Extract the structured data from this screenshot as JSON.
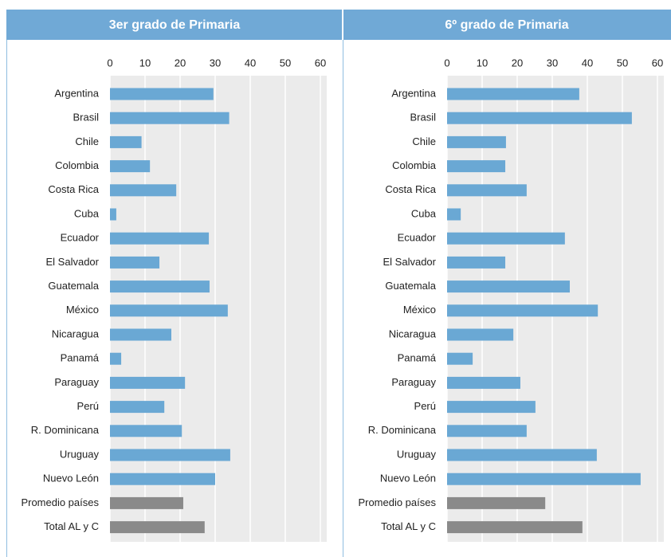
{
  "chart_data": [
    {
      "type": "bar",
      "orientation": "horizontal",
      "title": "3er grado de Primaria",
      "categories": [
        "Argentina",
        "Brasil",
        "Chile",
        "Colombia",
        "Costa Rica",
        "Cuba",
        "Ecuador",
        "El Salvador",
        "Guatemala",
        "México",
        "Nicaragua",
        "Panamá",
        "Paraguay",
        "Perú",
        "R. Dominicana",
        "Uruguay",
        "Nuevo León",
        "Promedio países",
        "Total AL y C"
      ],
      "values": [
        29.5,
        34,
        9,
        11.4,
        18.9,
        1.8,
        28.2,
        14.1,
        28.4,
        33.6,
        17.5,
        3.2,
        21.4,
        15.5,
        20.5,
        34.3,
        30,
        20.9,
        27
      ],
      "colors": [
        "#6aa8d4",
        "#6aa8d4",
        "#6aa8d4",
        "#6aa8d4",
        "#6aa8d4",
        "#6aa8d4",
        "#6aa8d4",
        "#6aa8d4",
        "#6aa8d4",
        "#6aa8d4",
        "#6aa8d4",
        "#6aa8d4",
        "#6aa8d4",
        "#6aa8d4",
        "#6aa8d4",
        "#6aa8d4",
        "#6aa8d4",
        "#8a8a8a",
        "#8a8a8a"
      ],
      "xlim": [
        0,
        60
      ],
      "xticks": [
        0,
        10,
        20,
        30,
        40,
        50,
        60
      ],
      "grid": true
    },
    {
      "type": "bar",
      "orientation": "horizontal",
      "title": "6º grado de Primaria",
      "categories": [
        "Argentina",
        "Brasil",
        "Chile",
        "Colombia",
        "Costa Rica",
        "Cuba",
        "Ecuador",
        "El Salvador",
        "Guatemala",
        "México",
        "Nicaragua",
        "Panamá",
        "Paraguay",
        "Perú",
        "R. Dominicana",
        "Uruguay",
        "Nuevo León",
        "Promedio países",
        "Total AL y C"
      ],
      "values": [
        37.7,
        52.7,
        16.8,
        16.6,
        22.7,
        3.9,
        33.6,
        16.6,
        35,
        43,
        18.9,
        7.3,
        20.9,
        25.2,
        22.7,
        42.7,
        55.2,
        28,
        38.6
      ],
      "colors": [
        "#6aa8d4",
        "#6aa8d4",
        "#6aa8d4",
        "#6aa8d4",
        "#6aa8d4",
        "#6aa8d4",
        "#6aa8d4",
        "#6aa8d4",
        "#6aa8d4",
        "#6aa8d4",
        "#6aa8d4",
        "#6aa8d4",
        "#6aa8d4",
        "#6aa8d4",
        "#6aa8d4",
        "#6aa8d4",
        "#6aa8d4",
        "#8a8a8a",
        "#8a8a8a"
      ],
      "xlim": [
        0,
        60
      ],
      "xticks": [
        0,
        10,
        20,
        30,
        40,
        50,
        60
      ],
      "grid": true
    }
  ]
}
